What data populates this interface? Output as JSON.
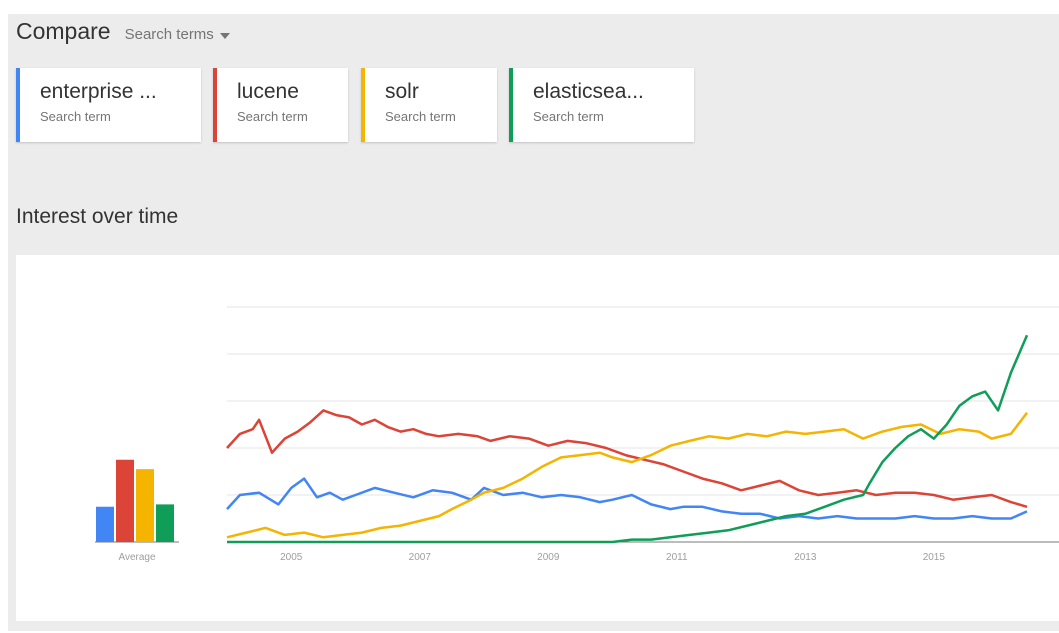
{
  "header": {
    "title": "Compare",
    "menu_label": "Search terms"
  },
  "terms": [
    {
      "name": "enterprise ...",
      "sub": "Search term",
      "color": "#4285F4"
    },
    {
      "name": "lucene",
      "sub": "Search term",
      "color": "#DB4437"
    },
    {
      "name": "solr",
      "sub": "Search term",
      "color": "#F4B400"
    },
    {
      "name": "elasticsea...",
      "sub": "Search term",
      "color": "#0F9D58"
    }
  ],
  "section_title": "Interest over time",
  "chart_data": {
    "type": "line",
    "average_label": "Average",
    "x_ticks": [
      "2005",
      "2007",
      "2009",
      "2011",
      "2013",
      "2015"
    ],
    "xlim": [
      2004.0,
      2016.45
    ],
    "ylim": [
      0,
      100
    ],
    "grid": true,
    "averages": [
      {
        "color": "#4285F4",
        "value": 15
      },
      {
        "color": "#DB4437",
        "value": 35
      },
      {
        "color": "#F4B400",
        "value": 31
      },
      {
        "color": "#0F9D58",
        "value": 16
      }
    ],
    "series": [
      {
        "color": "#4285F4",
        "x": [
          2004.0,
          2004.2,
          2004.5,
          2004.8,
          2005.0,
          2005.2,
          2005.4,
          2005.6,
          2005.8,
          2006.0,
          2006.3,
          2006.6,
          2006.9,
          2007.2,
          2007.5,
          2007.8,
          2008.0,
          2008.3,
          2008.6,
          2008.9,
          2009.2,
          2009.5,
          2009.8,
          2010.0,
          2010.3,
          2010.6,
          2010.9,
          2011.1,
          2011.4,
          2011.7,
          2012.0,
          2012.3,
          2012.6,
          2012.9,
          2013.2,
          2013.5,
          2013.8,
          2014.1,
          2014.4,
          2014.7,
          2015.0,
          2015.3,
          2015.6,
          2015.9,
          2016.2,
          2016.45
        ],
        "y": [
          14,
          20,
          21,
          16,
          23,
          27,
          19,
          21,
          18,
          20,
          23,
          21,
          19,
          22,
          21,
          18,
          23,
          20,
          21,
          19,
          20,
          19,
          17,
          18,
          20,
          16,
          14,
          15,
          15,
          13,
          12,
          12,
          10,
          11,
          10,
          11,
          10,
          10,
          10,
          11,
          10,
          10,
          11,
          10,
          10,
          13
        ]
      },
      {
        "color": "#DB4437",
        "x": [
          2004.0,
          2004.2,
          2004.4,
          2004.5,
          2004.7,
          2004.9,
          2005.1,
          2005.3,
          2005.5,
          2005.7,
          2005.9,
          2006.1,
          2006.3,
          2006.5,
          2006.7,
          2006.9,
          2007.1,
          2007.3,
          2007.6,
          2007.9,
          2008.1,
          2008.4,
          2008.7,
          2009.0,
          2009.3,
          2009.6,
          2009.9,
          2010.2,
          2010.5,
          2010.8,
          2011.1,
          2011.4,
          2011.7,
          2012.0,
          2012.3,
          2012.6,
          2012.9,
          2013.2,
          2013.5,
          2013.8,
          2014.1,
          2014.4,
          2014.7,
          2015.0,
          2015.3,
          2015.6,
          2015.9,
          2016.2,
          2016.45
        ],
        "y": [
          40,
          46,
          48,
          52,
          38,
          44,
          47,
          51,
          56,
          54,
          53,
          50,
          52,
          49,
          47,
          48,
          46,
          45,
          46,
          45,
          43,
          45,
          44,
          41,
          43,
          42,
          40,
          37,
          35,
          33,
          30,
          27,
          25,
          22,
          24,
          26,
          22,
          20,
          21,
          22,
          20,
          21,
          21,
          20,
          18,
          19,
          20,
          17,
          15
        ]
      },
      {
        "color": "#F4B400",
        "x": [
          2004.0,
          2004.3,
          2004.6,
          2004.9,
          2005.2,
          2005.5,
          2005.8,
          2006.1,
          2006.4,
          2006.7,
          2007.0,
          2007.3,
          2007.5,
          2007.8,
          2008.0,
          2008.3,
          2008.6,
          2008.9,
          2009.2,
          2009.5,
          2009.8,
          2010.0,
          2010.3,
          2010.6,
          2010.9,
          2011.2,
          2011.5,
          2011.8,
          2012.1,
          2012.4,
          2012.7,
          2013.0,
          2013.3,
          2013.6,
          2013.9,
          2014.2,
          2014.5,
          2014.8,
          2015.1,
          2015.4,
          2015.7,
          2015.9,
          2016.2,
          2016.45
        ],
        "y": [
          2,
          4,
          6,
          3,
          4,
          2,
          3,
          4,
          6,
          7,
          9,
          11,
          14,
          18,
          21,
          23,
          27,
          32,
          36,
          37,
          38,
          36,
          34,
          37,
          41,
          43,
          45,
          44,
          46,
          45,
          47,
          46,
          47,
          48,
          44,
          47,
          49,
          50,
          46,
          48,
          47,
          44,
          46,
          55
        ]
      },
      {
        "color": "#0F9D58",
        "x": [
          2004.0,
          2010.0,
          2010.3,
          2010.6,
          2010.9,
          2011.2,
          2011.5,
          2011.8,
          2012.1,
          2012.4,
          2012.7,
          2013.0,
          2013.3,
          2013.6,
          2013.9,
          2014.0,
          2014.2,
          2014.4,
          2014.6,
          2014.8,
          2015.0,
          2015.2,
          2015.4,
          2015.6,
          2015.8,
          2016.0,
          2016.2,
          2016.45
        ],
        "y": [
          0,
          0,
          1,
          1,
          2,
          3,
          4,
          5,
          7,
          9,
          11,
          12,
          15,
          18,
          20,
          25,
          34,
          40,
          45,
          48,
          44,
          50,
          58,
          62,
          64,
          56,
          72,
          88
        ]
      }
    ]
  }
}
